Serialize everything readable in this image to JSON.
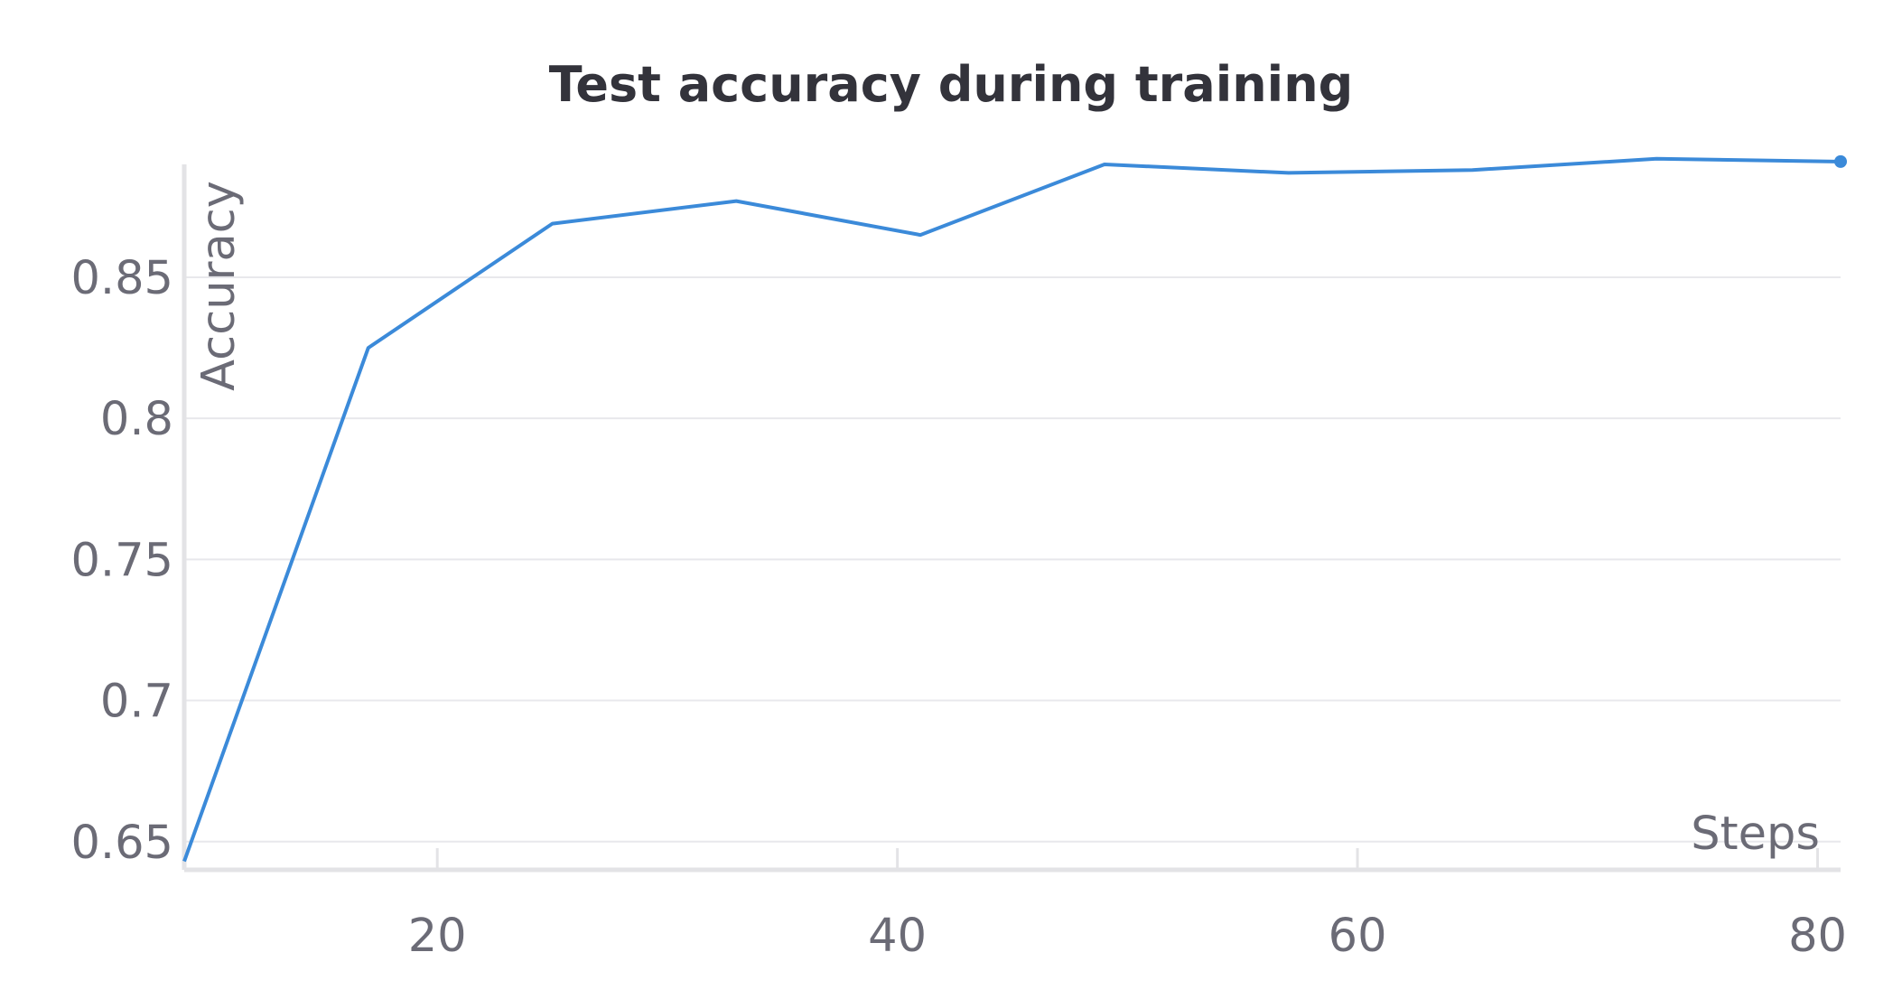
{
  "chart_data": {
    "type": "line",
    "title": "Test accuracy during training",
    "xlabel": "Steps",
    "ylabel": "Accuracy",
    "xlim": [
      9,
      81
    ],
    "ylim": [
      0.64,
      0.89
    ],
    "x_ticks": [
      20,
      40,
      60,
      80
    ],
    "x_tick_labels": [
      "20",
      "40",
      "60",
      "80"
    ],
    "y_ticks": [
      0.65,
      0.7,
      0.75,
      0.8,
      0.85
    ],
    "y_tick_labels": [
      "0.65",
      "0.7",
      "0.75",
      "0.8",
      "0.85"
    ],
    "grid": "horizontal",
    "legend": "none",
    "series": [
      {
        "color": "#3b8ad9",
        "x": [
          9,
          17,
          25,
          33,
          41,
          49,
          57,
          65,
          73,
          81
        ],
        "y": [
          0.643,
          0.825,
          0.869,
          0.877,
          0.865,
          0.89,
          0.887,
          0.888,
          0.892,
          0.891
        ]
      }
    ]
  },
  "colors": {
    "line": "#3b8ad9",
    "grid": "#e8e8ec",
    "axis": "#e3e3e6",
    "tick_text": "#6b6b76",
    "title": "#33333b"
  }
}
